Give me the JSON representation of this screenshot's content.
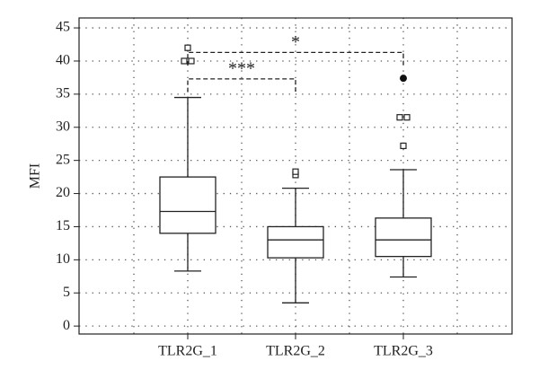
{
  "chart_data": {
    "type": "box",
    "y_label": "MFI",
    "categories": [
      "TLR2G_1",
      "TLR2G_2",
      "TLR2G_3"
    ],
    "boxes": [
      {
        "whislo": 8.3,
        "q1": 14,
        "med": 17.3,
        "q3": 22.5,
        "whishi": 34.5,
        "outliers": [
          40,
          40,
          42
        ],
        "extremes": []
      },
      {
        "whislo": 3.5,
        "q1": 10.3,
        "med": 13,
        "q3": 15,
        "whishi": 20.8,
        "outliers": [
          22.8,
          23.3
        ],
        "extremes": []
      },
      {
        "whislo": 7.4,
        "q1": 10.5,
        "med": 13,
        "q3": 16.3,
        "whishi": 23.6,
        "outliers": [
          27.2,
          31.5,
          31.5
        ],
        "extremes": [
          37.4
        ]
      }
    ],
    "annotations": [
      {
        "text": "***",
        "from": 0,
        "to": 1,
        "y": 37.3
      },
      {
        "text": "*",
        "from": 0,
        "to": 2,
        "y": 41.3
      }
    ],
    "ylim": [
      -1.2,
      46.5
    ],
    "yticks": [
      0,
      5,
      10,
      15,
      20,
      25,
      30,
      35,
      40,
      45
    ],
    "grid": true
  }
}
